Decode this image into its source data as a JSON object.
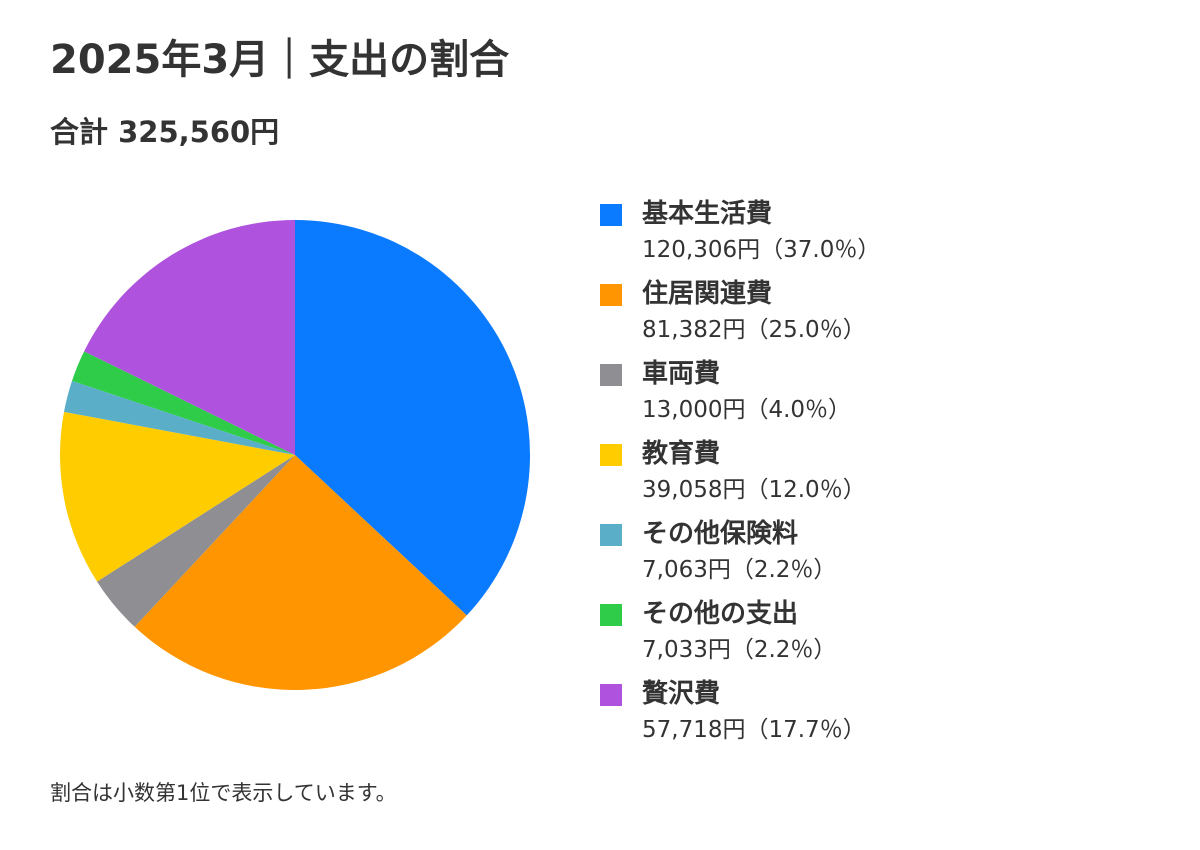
{
  "title": "2025年3月｜支出の割合",
  "subtitle": "合計 325,560円",
  "footnote": "割合は小数第1位で表示しています。",
  "chart_data": {
    "type": "pie",
    "title": "2025年3月｜支出の割合",
    "subtitle": "合計 325,560円",
    "legend_position": "right",
    "start_angle": "12 o'clock",
    "direction": "clockwise",
    "slices": [
      {
        "label": "基本生活費",
        "value": 120306,
        "percent": 37.0,
        "value_text": "120,306円（37.0％）",
        "color": "#0a7aff"
      },
      {
        "label": "住居関連費",
        "value": 81382,
        "percent": 25.0,
        "value_text": "81,382円（25.0％）",
        "color": "#ff9500"
      },
      {
        "label": "車両費",
        "value": 13000,
        "percent": 4.0,
        "value_text": "13,000円（4.0％）",
        "color": "#8e8e93"
      },
      {
        "label": "教育費",
        "value": 39058,
        "percent": 12.0,
        "value_text": "39,058円（12.0％）",
        "color": "#ffcc00"
      },
      {
        "label": "その他保険料",
        "value": 7063,
        "percent": 2.2,
        "value_text": "7,063円（2.2％）",
        "color": "#5aaec8"
      },
      {
        "label": "その他の支出",
        "value": 7033,
        "percent": 2.2,
        "value_text": "7,033円（2.2％）",
        "color": "#2ecc48"
      },
      {
        "label": "贅沢費",
        "value": 57718,
        "percent": 17.7,
        "value_text": "57,718円（17.7％）",
        "color": "#af52de"
      }
    ]
  }
}
